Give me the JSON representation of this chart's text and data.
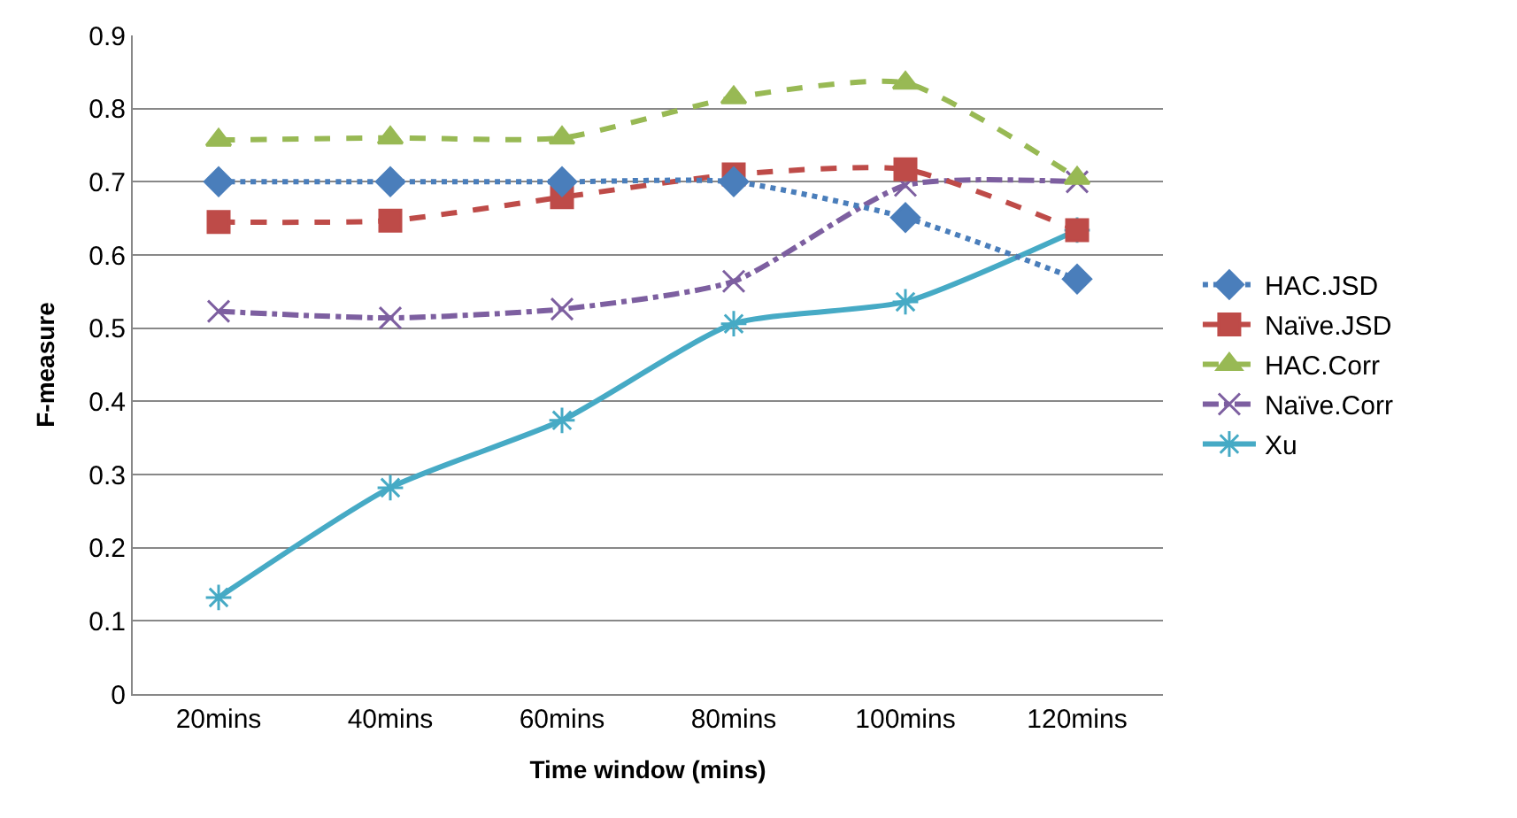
{
  "chart_data": {
    "type": "line",
    "xlabel": "Time window (mins)",
    "ylabel": "F-measure",
    "categories": [
      "20mins",
      "40mins",
      "60mins",
      "80mins",
      "100mins",
      "120mins"
    ],
    "ylim": [
      0,
      0.9
    ],
    "yticks": [
      0,
      0.1,
      0.2,
      0.3,
      0.4,
      0.5,
      0.6,
      0.7,
      0.8,
      0.9
    ],
    "grid": "y",
    "legend": "right",
    "series": [
      {
        "name": "HAC.JSD",
        "color": "#4a7ebb",
        "marker": "diamond",
        "line_style": "dotted",
        "values": [
          0.7,
          0.7,
          0.7,
          0.7,
          0.651,
          0.567
        ]
      },
      {
        "name": "Naïve.JSD",
        "color": "#be4b48",
        "marker": "square",
        "line_style": "dashed",
        "values": [
          0.645,
          0.647,
          0.679,
          0.71,
          0.717,
          0.634
        ]
      },
      {
        "name": "HAC.Corr",
        "color": "#98b954",
        "marker": "triangle",
        "line_style": "dashed",
        "values": [
          0.757,
          0.76,
          0.76,
          0.815,
          0.835,
          0.705
        ]
      },
      {
        "name": "Naïve.Corr",
        "color": "#7d5fa0",
        "marker": "cross",
        "line_style": "dashdot",
        "values": [
          0.523,
          0.514,
          0.526,
          0.564,
          0.695,
          0.7
        ]
      },
      {
        "name": "Xu",
        "color": "#46aac5",
        "marker": "cross",
        "line_style": "solid",
        "values": [
          0.132,
          0.282,
          0.374,
          0.506,
          0.536,
          0.634
        ]
      }
    ]
  }
}
